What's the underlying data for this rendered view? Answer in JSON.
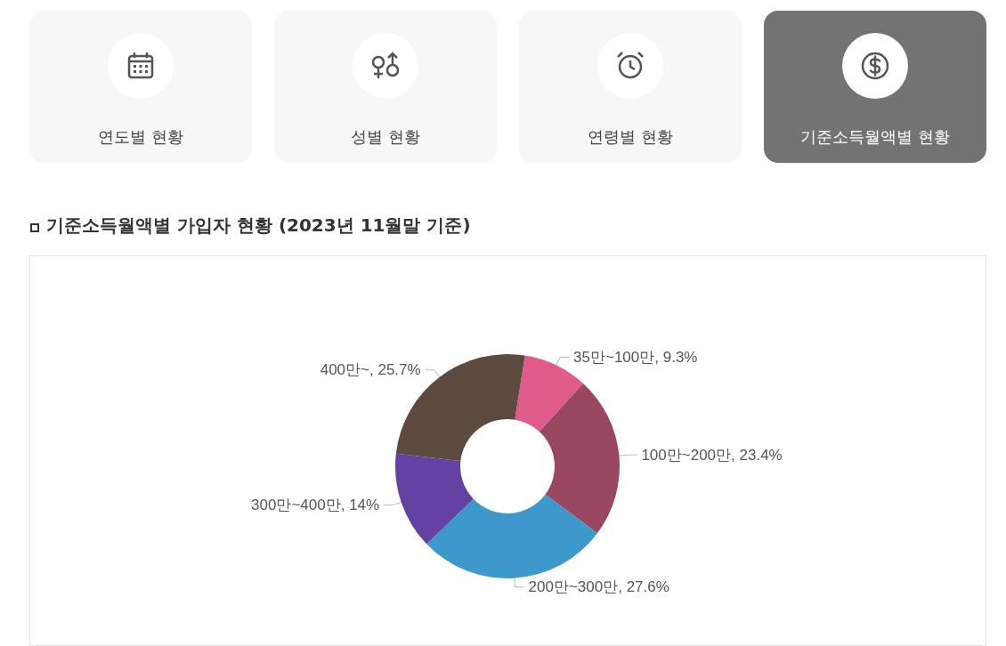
{
  "chart_data": {
    "type": "donut",
    "title": "기준소득월액별 가입자 현황 (2023년 11월말 기준)",
    "categories": [
      "35만~100만",
      "100만~200만",
      "200만~300만",
      "300만~400만",
      "400만~"
    ],
    "values": [
      9.3,
      23.4,
      27.6,
      14,
      25.7
    ],
    "value_labels": [
      "9.3%",
      "23.4%",
      "27.6%",
      "14%",
      "25.7%"
    ],
    "colors": [
      "#e05a8c",
      "#9a4862",
      "#3d98cb",
      "#6342a3",
      "#5c4a3f"
    ],
    "annotations": [
      "연도별 현황",
      "성별 현황",
      "연령별 현황",
      "기준소득월액별 현황"
    ],
    "legend": false
  }
}
